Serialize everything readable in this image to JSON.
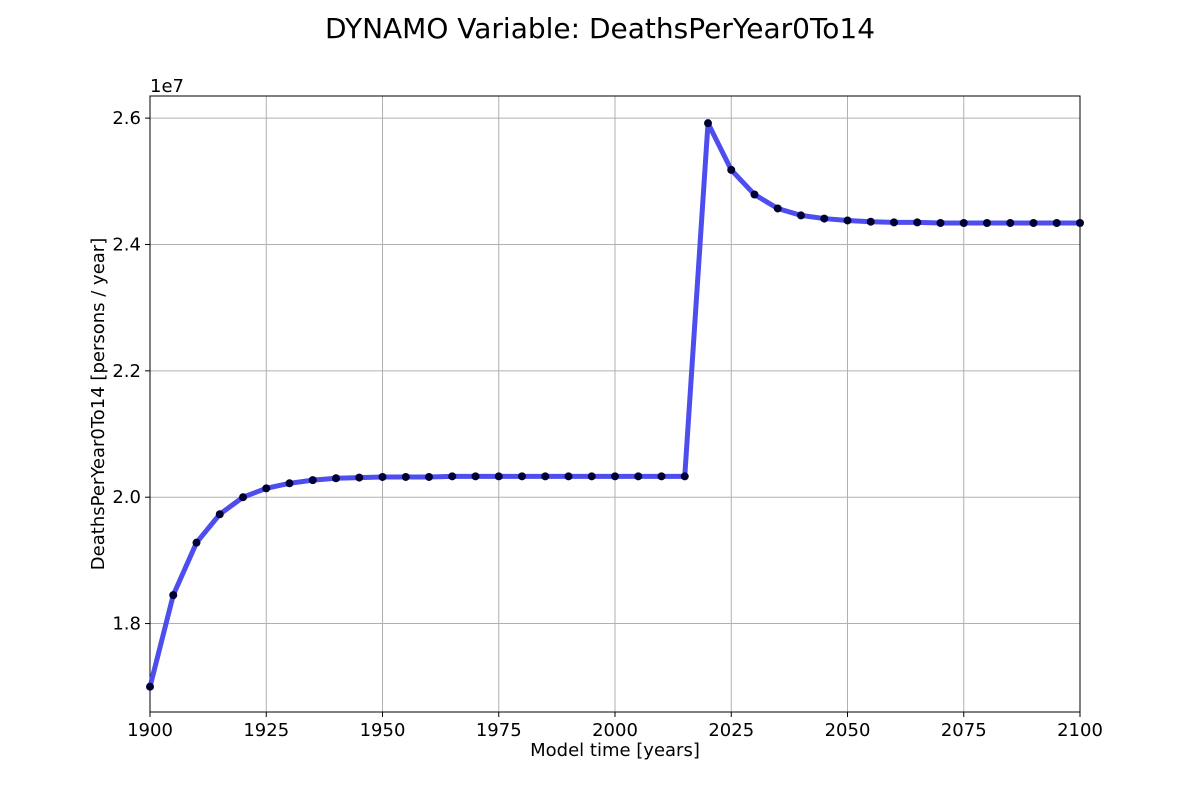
{
  "chart_data": {
    "type": "line",
    "title": "DYNAMO Variable: DeathsPerYear0To14",
    "xlabel": "Model time [years]",
    "ylabel": "DeathsPerYear0To14 [persons / year]",
    "y_offset_label": "1e7",
    "xlim": [
      1900,
      2100
    ],
    "ylim": [
      16.6,
      26.35
    ],
    "y_scale_note": "values in units of 1e6 persons/year; axis ticks shown in units of 1e7",
    "x_ticks": [
      1900,
      1925,
      1950,
      1975,
      2000,
      2025,
      2050,
      2075,
      2100
    ],
    "x_tick_labels": [
      "1900",
      "1925",
      "1950",
      "1975",
      "2000",
      "2025",
      "2050",
      "2075",
      "2100"
    ],
    "y_ticks": [
      18,
      20,
      22,
      24,
      26
    ],
    "y_tick_labels": [
      "1.8",
      "2.0",
      "2.2",
      "2.4",
      "2.6"
    ],
    "grid": true,
    "line_color": "#4444ee",
    "marker_color": "#000033",
    "series": [
      {
        "x": [
          1900,
          1905,
          1910,
          1915,
          1920,
          1925,
          1930,
          1935,
          1940,
          1945,
          1950,
          1955,
          1960,
          1965,
          1970,
          1975,
          1980,
          1985,
          1990,
          1995,
          2000,
          2005,
          2010,
          2015,
          2020,
          2025,
          2030,
          2035,
          2040,
          2045,
          2050,
          2055,
          2060,
          2065,
          2070,
          2075,
          2080,
          2085,
          2090,
          2095,
          2100
        ],
        "values": [
          17.0,
          18.45,
          19.28,
          19.73,
          20.0,
          20.14,
          20.22,
          20.27,
          20.3,
          20.31,
          20.32,
          20.32,
          20.32,
          20.33,
          20.33,
          20.33,
          20.33,
          20.33,
          20.33,
          20.33,
          20.33,
          20.33,
          20.33,
          20.33,
          25.92,
          25.18,
          24.79,
          24.57,
          24.46,
          24.41,
          24.38,
          24.36,
          24.35,
          24.35,
          24.34,
          24.34,
          24.34,
          24.34,
          24.34,
          24.34,
          24.34
        ]
      }
    ]
  }
}
